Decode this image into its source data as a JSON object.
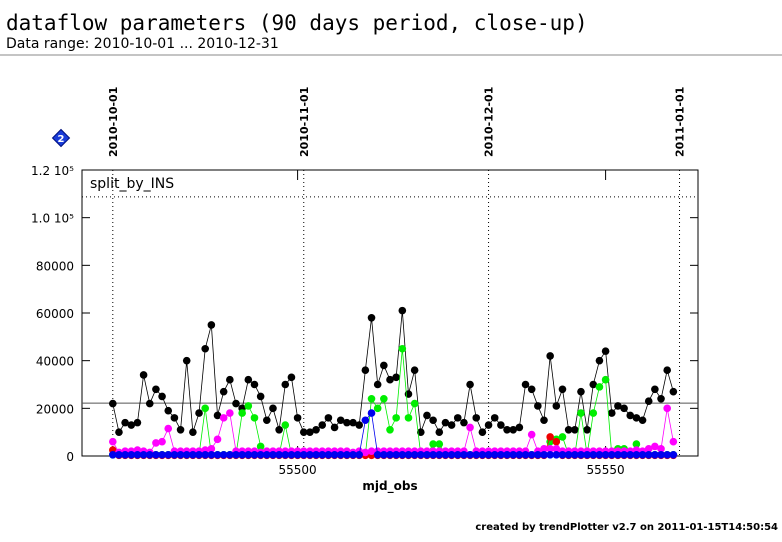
{
  "chart_data": {
    "type": "line",
    "title": "dataflow parameters (90 days period, close-up)",
    "subtitle": "Data range: 2010-10-01 ... 2010-12-31",
    "annotation": "split_by_INS",
    "xlabel": "mjd_obs",
    "footer": "created by trendPlotter v2.7 on 2011-01-15T14:50:54",
    "xlim": [
      55465,
      55565
    ],
    "xticks": [
      55500,
      55550
    ],
    "date_ticks": [
      {
        "value": 55470,
        "label": "2010-10-01"
      },
      {
        "value": 55501,
        "label": "2010-11-01"
      },
      {
        "value": 55531,
        "label": "2010-12-01"
      },
      {
        "value": 55562,
        "label": "2011-01-01"
      }
    ],
    "ylim": [
      0,
      120000
    ],
    "yticks": [
      0,
      20000,
      40000,
      60000,
      80000,
      {
        "value": 100000,
        "label": "1.0 10⁵"
      },
      {
        "value": 120000,
        "label": "1.2 10⁵"
      }
    ],
    "reference_lines": [
      {
        "value": 22200,
        "style": "solid"
      },
      {
        "value": 108700,
        "style": "dotted"
      }
    ],
    "x": [
      55470,
      55471,
      55472,
      55473,
      55474,
      55475,
      55476,
      55477,
      55478,
      55479,
      55480,
      55481,
      55482,
      55483,
      55484,
      55485,
      55486,
      55487,
      55488,
      55489,
      55490,
      55491,
      55492,
      55493,
      55494,
      55495,
      55496,
      55497,
      55498,
      55499,
      55500,
      55501,
      55502,
      55503,
      55504,
      55505,
      55506,
      55507,
      55508,
      55509,
      55510,
      55511,
      55512,
      55513,
      55514,
      55515,
      55516,
      55517,
      55518,
      55519,
      55520,
      55521,
      55522,
      55523,
      55524,
      55525,
      55526,
      55527,
      55528,
      55529,
      55530,
      55531,
      55532,
      55533,
      55534,
      55535,
      55536,
      55537,
      55538,
      55539,
      55540,
      55541,
      55542,
      55543,
      55544,
      55545,
      55546,
      55547,
      55548,
      55549,
      55550,
      55551,
      55552,
      55553,
      55554,
      55555,
      55556,
      55557,
      55558,
      55559,
      55560,
      55561
    ],
    "series": [
      {
        "color": "#000000",
        "values": [
          22000,
          10000,
          14000,
          13000,
          14000,
          34000,
          22000,
          28000,
          25000,
          19000,
          16000,
          11000,
          40000,
          10000,
          18000,
          45000,
          55000,
          17000,
          27000,
          32000,
          22000,
          20000,
          32000,
          30000,
          25000,
          15000,
          20000,
          11000,
          30000,
          33000,
          16000,
          10000,
          10000,
          11000,
          13000,
          16000,
          12000,
          15000,
          14000,
          14000,
          13000,
          36000,
          58000,
          30000,
          38000,
          32000,
          33000,
          61000,
          26000,
          36000,
          10000,
          17000,
          15000,
          10000,
          14000,
          13000,
          16000,
          14000,
          30000,
          16000,
          10000,
          13000,
          16000,
          13000,
          11000,
          11000,
          12000,
          30000,
          28000,
          21000,
          15000,
          42000,
          21000,
          28000,
          11000,
          11000,
          27000,
          11000,
          30000,
          40000,
          44000,
          18000,
          21000,
          20000,
          17000,
          16000,
          15000,
          23000,
          28000,
          24000,
          36000,
          27000
        ]
      },
      {
        "color": "#00ee00",
        "values": [
          500,
          500,
          500,
          500,
          500,
          500,
          500,
          500,
          500,
          500,
          500,
          500,
          500,
          500,
          500,
          20000,
          500,
          500,
          500,
          500,
          500,
          18000,
          21000,
          16000,
          4000,
          500,
          500,
          500,
          13000,
          500,
          500,
          500,
          500,
          500,
          500,
          500,
          500,
          500,
          500,
          500,
          500,
          500,
          24000,
          20000,
          24000,
          11000,
          16000,
          45000,
          16000,
          22000,
          500,
          500,
          5000,
          5000,
          500,
          500,
          500,
          500,
          500,
          500,
          500,
          500,
          500,
          500,
          500,
          500,
          500,
          500,
          500,
          500,
          500,
          6000,
          7000,
          8000,
          500,
          500,
          18000,
          500,
          18000,
          29000,
          32000,
          500,
          3000,
          3000,
          500,
          5000,
          500,
          500,
          500,
          500,
          500,
          500
        ]
      },
      {
        "color": "#ee0000",
        "values": [
          2500,
          300,
          300,
          300,
          300,
          300,
          300,
          300,
          300,
          300,
          300,
          300,
          300,
          300,
          300,
          300,
          300,
          300,
          300,
          300,
          300,
          300,
          300,
          300,
          300,
          300,
          300,
          300,
          300,
          300,
          300,
          300,
          300,
          300,
          300,
          300,
          300,
          300,
          300,
          300,
          300,
          300,
          300,
          300,
          300,
          300,
          300,
          300,
          300,
          300,
          300,
          300,
          300,
          300,
          300,
          300,
          300,
          300,
          300,
          300,
          300,
          300,
          300,
          300,
          300,
          300,
          300,
          300,
          300,
          300,
          300,
          8000,
          6000,
          300,
          300,
          300,
          300,
          300,
          300,
          300,
          300,
          300,
          300,
          300,
          300,
          300,
          300,
          300,
          300,
          300,
          300,
          300
        ]
      },
      {
        "color": "#ff00ff",
        "values": [
          6000,
          1500,
          2000,
          2000,
          2500,
          2000,
          1500,
          5500,
          6000,
          11500,
          2000,
          2000,
          2000,
          2000,
          2000,
          2500,
          3000,
          7000,
          16000,
          18000,
          2000,
          2000,
          2000,
          2000,
          1500,
          2000,
          2000,
          2000,
          2000,
          2000,
          2000,
          2000,
          2000,
          2000,
          2000,
          2000,
          2000,
          2000,
          2000,
          1500,
          2000,
          1500,
          2000,
          2000,
          2000,
          2000,
          2000,
          2000,
          2000,
          2000,
          2000,
          2000,
          2000,
          2000,
          2000,
          2000,
          2000,
          2000,
          12000,
          2000,
          2000,
          2000,
          2000,
          2000,
          2000,
          2000,
          2000,
          2000,
          9000,
          2000,
          3000,
          3000,
          3000,
          2000,
          2000,
          2000,
          2000,
          2000,
          2000,
          2000,
          2000,
          2000,
          2000,
          2000,
          2000,
          2500,
          2000,
          3000,
          4000,
          3000,
          20000,
          6000
        ]
      },
      {
        "color": "#0000ee",
        "values": [
          500,
          500,
          500,
          500,
          500,
          500,
          500,
          500,
          500,
          500,
          500,
          500,
          500,
          500,
          500,
          500,
          500,
          500,
          500,
          500,
          500,
          500,
          500,
          500,
          500,
          500,
          500,
          500,
          500,
          500,
          500,
          500,
          500,
          500,
          500,
          500,
          500,
          500,
          500,
          500,
          500,
          15000,
          18000,
          500,
          500,
          500,
          500,
          500,
          500,
          500,
          500,
          500,
          500,
          500,
          500,
          500,
          500,
          500,
          500,
          500,
          500,
          500,
          500,
          500,
          500,
          500,
          500,
          500,
          500,
          500,
          500,
          500,
          500,
          500,
          500,
          500,
          500,
          500,
          500,
          500,
          500,
          500,
          500,
          500,
          500,
          500,
          500,
          500,
          500,
          500,
          500,
          500
        ]
      }
    ]
  }
}
